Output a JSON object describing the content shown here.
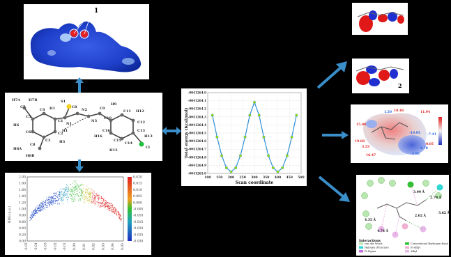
{
  "center_plot": {
    "x_axis_title": "Scan coordinate",
    "y_axis_title": "Total energy (Kcal/mol)",
    "x_ticks": [
      "100",
      "150",
      "200",
      "250",
      "300",
      "350",
      "400",
      "450",
      "500"
    ],
    "y_ticks": [
      "-0041264.0",
      "-0041264.1",
      "-0041264.2",
      "-0041264.3",
      "-0041264.4",
      "-0041264.5",
      "-0041264.6",
      "-0041264.7",
      "-0041264.8",
      "-0041264.9",
      "-0041265.0"
    ],
    "color_line": "#2d8fd5",
    "color_marker": "#9be000"
  },
  "chart_data": {
    "type": "line",
    "title": "",
    "xlabel": "Scan coordinate",
    "ylabel": "Total energy (Kcal/mol)",
    "xlim": [
      100,
      500
    ],
    "ylim": [
      -41265.0,
      -41264.0
    ],
    "x": [
      120,
      140,
      160,
      180,
      200,
      220,
      240,
      260,
      280,
      300,
      320,
      340,
      360,
      380,
      400,
      420,
      440,
      460,
      480
    ],
    "values": [
      -41264.28,
      -41264.55,
      -41264.78,
      -41264.93,
      -41264.98,
      -41264.93,
      -41264.78,
      -41264.55,
      -41264.28,
      -41264.12,
      -41264.28,
      -41264.55,
      -41264.78,
      -41264.93,
      -41264.98,
      -41264.93,
      -41264.78,
      -41264.55,
      -41264.28
    ]
  },
  "molecule": {
    "atoms": [
      "H7A",
      "H7B",
      "C7",
      "H1",
      "C4",
      "C5",
      "C6",
      "C1",
      "C2",
      "C3",
      "H6",
      "H3",
      "N1",
      "H1",
      "S1",
      "C8",
      "N2",
      "N3",
      "C9",
      "C10",
      "H9",
      "H12",
      "C11",
      "C12",
      "C13",
      "C14",
      "C15",
      "C16",
      "H16",
      "H13",
      "H15",
      "Cl",
      "H8A",
      "H8B",
      "C8"
    ]
  },
  "hirshfeld": {
    "spot_label": "1"
  },
  "scatter": {
    "y_ticks": [
      "2.00",
      "1.80",
      "1.60",
      "1.40",
      "1.20",
      "1.00",
      "0.80",
      "0.60",
      "0.40",
      "0.20",
      "0.00"
    ],
    "y_label": "RDG (a.u.)",
    "colorbar_ticks": [
      "0.020",
      "0.015",
      "0.010",
      "0.005",
      "0.000",
      "-0.005",
      "-0.010",
      "-0.015",
      "-0.020",
      "-0.025",
      "-0.030"
    ],
    "x_ticks": [
      "-0.05",
      "-0.04",
      "-0.03",
      "-0.02",
      "-0.01",
      "0.00",
      "0.01",
      "0.02",
      "0.03",
      "0.04",
      "0.05"
    ]
  },
  "mesp": {
    "labels": [
      "1.50",
      "15.08",
      "11.94",
      "-19.95",
      "10.48",
      "-7.41",
      "-4.78",
      "-3.06",
      "3.53",
      "0.05",
      "19.68",
      "16.47"
    ]
  },
  "docking": {
    "distances": [
      "3.99 Å",
      "2.79 Å",
      "3.62 Å",
      "2.02 Å",
      "4.35 Å",
      "4.74 Å"
    ],
    "legend_title": "Interactions",
    "legend_items": [
      "van der Waals",
      "Conventional Hydrogen Bond",
      "Halogen (Fluorine)",
      "Pi-Alkyl",
      "Pi-Sigma",
      "Alkyl"
    ]
  },
  "homo_lumo": {
    "label2": "2"
  }
}
